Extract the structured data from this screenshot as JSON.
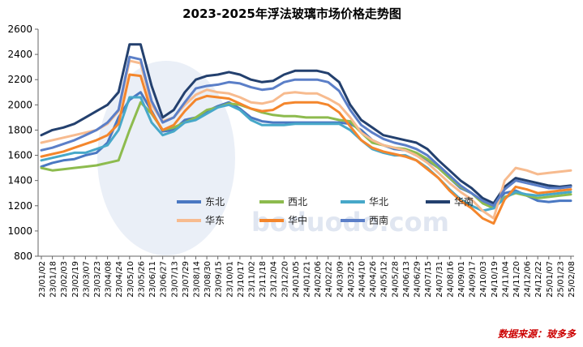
{
  "chart_data": {
    "type": "line",
    "title": "2023-2025年浮法玻璃市场价格走势图",
    "source": "数据来源：玻多多",
    "watermark": "boduodo.com",
    "ylim": [
      800,
      2600
    ],
    "yticks": [
      800,
      1000,
      1200,
      1400,
      1600,
      1800,
      2000,
      2200,
      2400,
      2600
    ],
    "grid": false,
    "legend_position": "center-right",
    "categories": [
      "23/01/02",
      "23/01/18",
      "23/02/03",
      "23/02/19",
      "23/03/07",
      "23/03/23",
      "23/04/08",
      "23/04/24",
      "23/05/10",
      "23/05/26",
      "23/06/11",
      "23/06/27",
      "23/07/13",
      "23/07/29",
      "23/08/14",
      "23/08/30",
      "23/09/15",
      "23/10/01",
      "23/10/17",
      "23/11/02",
      "23/11/18",
      "23/12/04",
      "23/12/20",
      "24/01/05",
      "24/01/21",
      "24/02/06",
      "24/02/22",
      "24/03/09",
      "24/03/25",
      "24/04/10",
      "24/04/26",
      "24/05/12",
      "24/05/28",
      "24/06/13",
      "24/06/29",
      "24/07/15",
      "24/07/31",
      "24/08/16",
      "24/09/01",
      "24/09/17",
      "24/10/03",
      "24/10/19",
      "24/11/04",
      "24/11/20",
      "24/12/06",
      "24/12/22",
      "25/01/07",
      "25/01/23",
      "25/02/08"
    ],
    "series": [
      {
        "name": "东北",
        "color": "#4a78c2",
        "values": [
          1510,
          1540,
          1560,
          1570,
          1600,
          1620,
          1700,
          1900,
          2040,
          2100,
          1950,
          1790,
          1800,
          1880,
          1900,
          1950,
          1990,
          2020,
          1970,
          1900,
          1870,
          1860,
          1860,
          1860,
          1860,
          1860,
          1860,
          1860,
          1850,
          1800,
          1720,
          1680,
          1650,
          1640,
          1600,
          1560,
          1500,
          1420,
          1340,
          1300,
          1230,
          1200,
          1300,
          1320,
          1280,
          1240,
          1230,
          1240,
          1240
        ]
      },
      {
        "name": "西北",
        "color": "#8dbb4e",
        "values": [
          1500,
          1480,
          1490,
          1500,
          1510,
          1520,
          1540,
          1560,
          1800,
          2020,
          1930,
          1800,
          1820,
          1860,
          1900,
          1960,
          1980,
          2010,
          2000,
          1970,
          1940,
          1920,
          1910,
          1910,
          1900,
          1900,
          1900,
          1880,
          1870,
          1780,
          1700,
          1680,
          1660,
          1650,
          1620,
          1570,
          1500,
          1420,
          1350,
          1300,
          1220,
          1180,
          1270,
          1300,
          1280,
          1260,
          1270,
          1280,
          1290
        ]
      },
      {
        "name": "华北",
        "color": "#47a8c9",
        "values": [
          1560,
          1580,
          1600,
          1620,
          1620,
          1650,
          1680,
          1800,
          2060,
          2060,
          1860,
          1760,
          1790,
          1860,
          1880,
          1930,
          1980,
          2000,
          1960,
          1880,
          1840,
          1840,
          1840,
          1850,
          1850,
          1850,
          1850,
          1850,
          1800,
          1720,
          1650,
          1620,
          1600,
          1600,
          1560,
          1500,
          1420,
          1330,
          1250,
          1200,
          1160,
          1180,
          1260,
          1310,
          1290,
          1280,
          1290,
          1300,
          1310
        ]
      },
      {
        "name": "华南",
        "color": "#23406e",
        "values": [
          1760,
          1800,
          1820,
          1850,
          1900,
          1950,
          2000,
          2100,
          2480,
          2480,
          2150,
          1900,
          1960,
          2100,
          2200,
          2230,
          2240,
          2260,
          2240,
          2200,
          2180,
          2190,
          2240,
          2270,
          2270,
          2270,
          2250,
          2180,
          2000,
          1880,
          1820,
          1760,
          1740,
          1720,
          1700,
          1650,
          1560,
          1480,
          1400,
          1340,
          1260,
          1220,
          1350,
          1420,
          1400,
          1380,
          1360,
          1350,
          1360
        ]
      },
      {
        "name": "华东",
        "color": "#f7bb8f",
        "values": [
          1700,
          1720,
          1740,
          1760,
          1780,
          1800,
          1850,
          1950,
          2350,
          2330,
          2000,
          1870,
          1900,
          2000,
          2080,
          2120,
          2100,
          2090,
          2060,
          2020,
          2010,
          2030,
          2090,
          2100,
          2090,
          2090,
          2050,
          2000,
          1900,
          1780,
          1720,
          1680,
          1660,
          1640,
          1600,
          1540,
          1460,
          1380,
          1310,
          1250,
          1160,
          1100,
          1400,
          1500,
          1480,
          1450,
          1460,
          1470,
          1480
        ]
      },
      {
        "name": "华中",
        "color": "#f4862c",
        "values": [
          1590,
          1610,
          1630,
          1660,
          1690,
          1720,
          1760,
          1850,
          2240,
          2230,
          1940,
          1800,
          1840,
          1950,
          2040,
          2070,
          2060,
          2050,
          2010,
          1970,
          1950,
          1960,
          2010,
          2020,
          2020,
          2020,
          2000,
          1940,
          1830,
          1720,
          1660,
          1630,
          1610,
          1590,
          1560,
          1490,
          1420,
          1320,
          1240,
          1180,
          1100,
          1060,
          1250,
          1350,
          1330,
          1300,
          1310,
          1320,
          1330
        ]
      },
      {
        "name": "西南",
        "color": "#5b7fc8",
        "values": [
          1640,
          1660,
          1690,
          1720,
          1760,
          1800,
          1860,
          1960,
          2380,
          2360,
          2030,
          1860,
          1900,
          2020,
          2130,
          2150,
          2160,
          2180,
          2170,
          2140,
          2120,
          2130,
          2180,
          2200,
          2200,
          2200,
          2180,
          2110,
          1960,
          1840,
          1780,
          1730,
          1700,
          1680,
          1650,
          1600,
          1520,
          1440,
          1360,
          1300,
          1240,
          1200,
          1330,
          1400,
          1380,
          1360,
          1340,
          1340,
          1350
        ]
      }
    ]
  }
}
